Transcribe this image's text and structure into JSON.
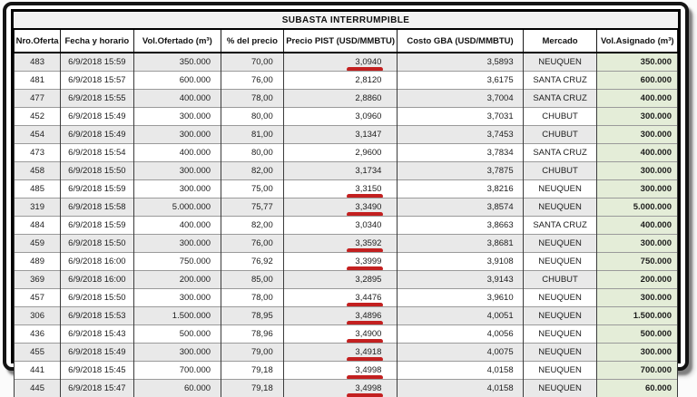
{
  "colors": {
    "row_alt": "#e9e9e9",
    "assigned_col_bg": "#e4edd8",
    "underline_red": "#c32020",
    "frame_border": "#141414"
  },
  "chart_data": {
    "type": "table",
    "title": "SUBASTA INTERRUMPIBLE",
    "columns": [
      "Nro.Oferta",
      "Fecha y horario",
      "Vol.Ofertado (m³)",
      "% del precio",
      "Precio PIST (USD/MMBTU)",
      "Costo GBA (USD/MMBTU)",
      "Mercado",
      "Vol.Asignado (m³)"
    ],
    "rows": [
      {
        "nro": "483",
        "fecha": "6/9/2018 15:59",
        "vol_ofertado": "350.000",
        "pct_precio": "70,00",
        "precio_pist": "3,0940",
        "costo_gba": "3,5893",
        "mercado": "NEUQUEN",
        "vol_asignado": "350.000",
        "pist_underlined": true
      },
      {
        "nro": "481",
        "fecha": "6/9/2018 15:57",
        "vol_ofertado": "600.000",
        "pct_precio": "76,00",
        "precio_pist": "2,8120",
        "costo_gba": "3,6175",
        "mercado": "SANTA CRUZ",
        "vol_asignado": "600.000",
        "pist_underlined": false
      },
      {
        "nro": "477",
        "fecha": "6/9/2018 15:55",
        "vol_ofertado": "400.000",
        "pct_precio": "78,00",
        "precio_pist": "2,8860",
        "costo_gba": "3,7004",
        "mercado": "SANTA CRUZ",
        "vol_asignado": "400.000",
        "pist_underlined": false
      },
      {
        "nro": "452",
        "fecha": "6/9/2018 15:49",
        "vol_ofertado": "300.000",
        "pct_precio": "80,00",
        "precio_pist": "3,0960",
        "costo_gba": "3,7031",
        "mercado": "CHUBUT",
        "vol_asignado": "300.000",
        "pist_underlined": false
      },
      {
        "nro": "454",
        "fecha": "6/9/2018 15:49",
        "vol_ofertado": "300.000",
        "pct_precio": "81,00",
        "precio_pist": "3,1347",
        "costo_gba": "3,7453",
        "mercado": "CHUBUT",
        "vol_asignado": "300.000",
        "pist_underlined": false
      },
      {
        "nro": "473",
        "fecha": "6/9/2018 15:54",
        "vol_ofertado": "400.000",
        "pct_precio": "80,00",
        "precio_pist": "2,9600",
        "costo_gba": "3,7834",
        "mercado": "SANTA CRUZ",
        "vol_asignado": "400.000",
        "pist_underlined": false
      },
      {
        "nro": "458",
        "fecha": "6/9/2018 15:50",
        "vol_ofertado": "300.000",
        "pct_precio": "82,00",
        "precio_pist": "3,1734",
        "costo_gba": "3,7875",
        "mercado": "CHUBUT",
        "vol_asignado": "300.000",
        "pist_underlined": false
      },
      {
        "nro": "485",
        "fecha": "6/9/2018 15:59",
        "vol_ofertado": "300.000",
        "pct_precio": "75,00",
        "precio_pist": "3,3150",
        "costo_gba": "3,8216",
        "mercado": "NEUQUEN",
        "vol_asignado": "300.000",
        "pist_underlined": true
      },
      {
        "nro": "319",
        "fecha": "6/9/2018 15:58",
        "vol_ofertado": "5.000.000",
        "pct_precio": "75,77",
        "precio_pist": "3,3490",
        "costo_gba": "3,8574",
        "mercado": "NEUQUEN",
        "vol_asignado": "5.000.000",
        "pist_underlined": true
      },
      {
        "nro": "484",
        "fecha": "6/9/2018 15:59",
        "vol_ofertado": "400.000",
        "pct_precio": "82,00",
        "precio_pist": "3,0340",
        "costo_gba": "3,8663",
        "mercado": "SANTA CRUZ",
        "vol_asignado": "400.000",
        "pist_underlined": false
      },
      {
        "nro": "459",
        "fecha": "6/9/2018 15:50",
        "vol_ofertado": "300.000",
        "pct_precio": "76,00",
        "precio_pist": "3,3592",
        "costo_gba": "3,8681",
        "mercado": "NEUQUEN",
        "vol_asignado": "300.000",
        "pist_underlined": true
      },
      {
        "nro": "489",
        "fecha": "6/9/2018 16:00",
        "vol_ofertado": "750.000",
        "pct_precio": "76,92",
        "precio_pist": "3,3999",
        "costo_gba": "3,9108",
        "mercado": "NEUQUEN",
        "vol_asignado": "750.000",
        "pist_underlined": true
      },
      {
        "nro": "369",
        "fecha": "6/9/2018 16:00",
        "vol_ofertado": "200.000",
        "pct_precio": "85,00",
        "precio_pist": "3,2895",
        "costo_gba": "3,9143",
        "mercado": "CHUBUT",
        "vol_asignado": "200.000",
        "pist_underlined": false
      },
      {
        "nro": "457",
        "fecha": "6/9/2018 15:50",
        "vol_ofertado": "300.000",
        "pct_precio": "78,00",
        "precio_pist": "3,4476",
        "costo_gba": "3,9610",
        "mercado": "NEUQUEN",
        "vol_asignado": "300.000",
        "pist_underlined": true
      },
      {
        "nro": "306",
        "fecha": "6/9/2018 15:53",
        "vol_ofertado": "1.500.000",
        "pct_precio": "78,95",
        "precio_pist": "3,4896",
        "costo_gba": "4,0051",
        "mercado": "NEUQUEN",
        "vol_asignado": "1.500.000",
        "pist_underlined": true
      },
      {
        "nro": "436",
        "fecha": "6/9/2018 15:43",
        "vol_ofertado": "500.000",
        "pct_precio": "78,96",
        "precio_pist": "3,4900",
        "costo_gba": "4,0056",
        "mercado": "NEUQUEN",
        "vol_asignado": "500.000",
        "pist_underlined": true
      },
      {
        "nro": "455",
        "fecha": "6/9/2018 15:49",
        "vol_ofertado": "300.000",
        "pct_precio": "79,00",
        "precio_pist": "3,4918",
        "costo_gba": "4,0075",
        "mercado": "NEUQUEN",
        "vol_asignado": "300.000",
        "pist_underlined": true
      },
      {
        "nro": "441",
        "fecha": "6/9/2018 15:45",
        "vol_ofertado": "700.000",
        "pct_precio": "79,18",
        "precio_pist": "3,4998",
        "costo_gba": "4,0158",
        "mercado": "NEUQUEN",
        "vol_asignado": "700.000",
        "pist_underlined": true
      },
      {
        "nro": "445",
        "fecha": "6/9/2018 15:47",
        "vol_ofertado": "60.000",
        "pct_precio": "79,18",
        "precio_pist": "3,4998",
        "costo_gba": "4,0158",
        "mercado": "NEUQUEN",
        "vol_asignado": "60.000",
        "pist_underlined": true
      }
    ]
  }
}
